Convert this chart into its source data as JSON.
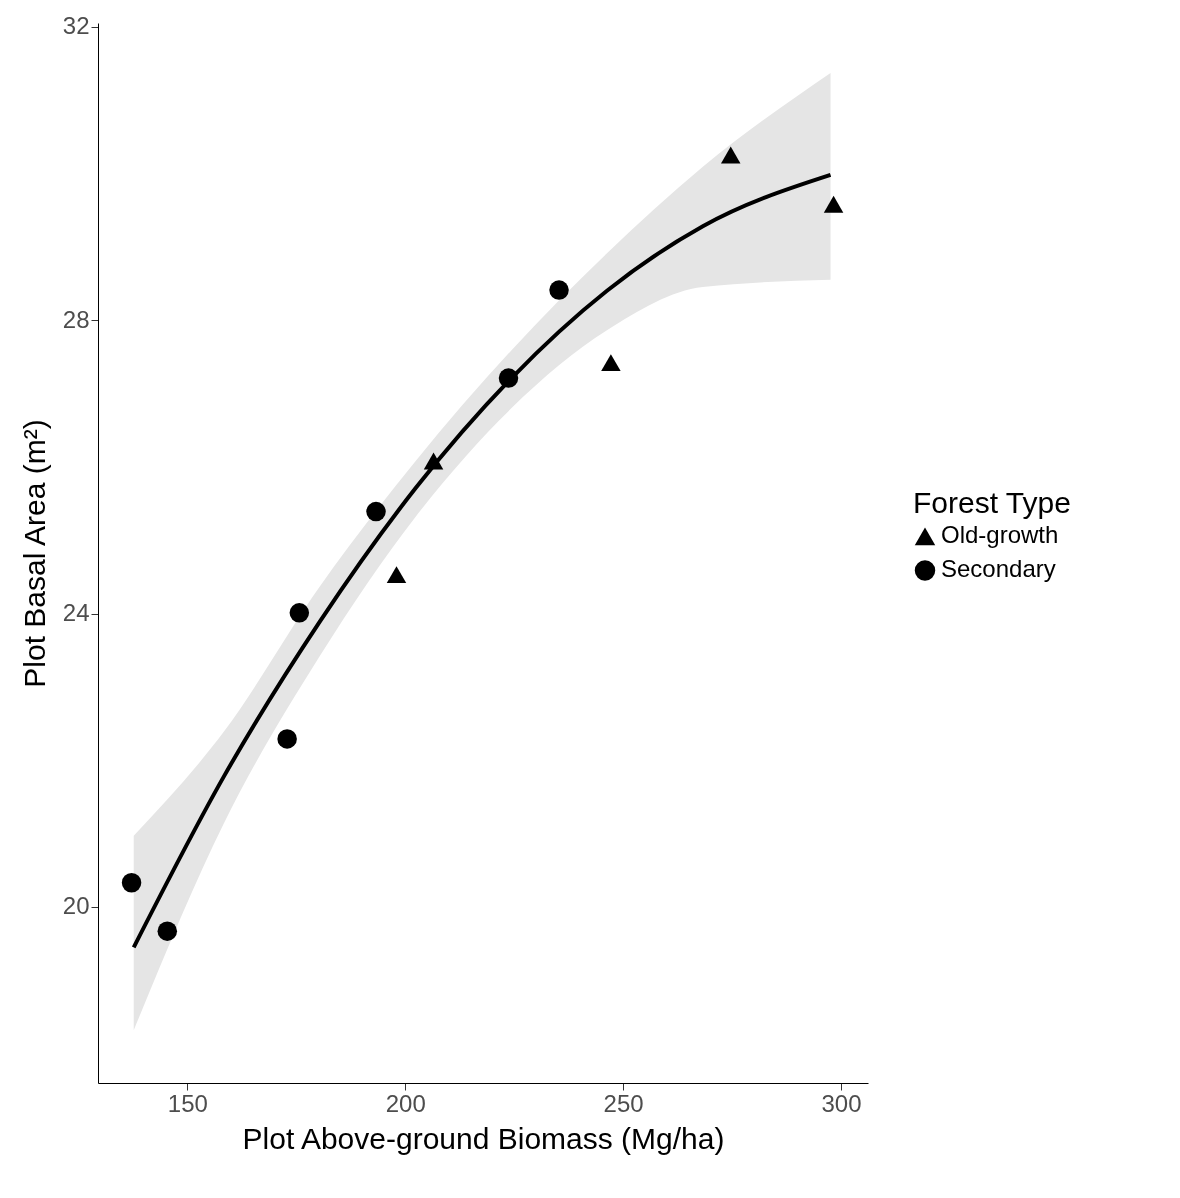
{
  "chart_data": {
    "type": "scatter",
    "xlabel": "Plot Above-ground Biomass (Mg/ha)",
    "ylabel": "Plot Basal Area (m²)",
    "legend_title": "Forest Type",
    "legend": "right",
    "grid": false,
    "xlim": [
      129.5,
      306.2
    ],
    "ylim": [
      17.6,
      32.05
    ],
    "xticks": [
      150,
      200,
      250,
      300
    ],
    "yticks": [
      20,
      24,
      28,
      32
    ],
    "series": [
      {
        "name": "Old-growth",
        "color": "#000000",
        "marker": "triangle",
        "x": [
          198.0,
          206.5,
          247.2,
          274.7,
          298.3
        ],
        "values": [
          24.53,
          26.08,
          27.42,
          30.25,
          29.58
        ]
      },
      {
        "name": "Secondary",
        "color": "#000000",
        "marker": "circle",
        "x": [
          137.2,
          145.4,
          172.9,
          175.7,
          193.3,
          223.7,
          235.3
        ],
        "values": [
          20.33,
          19.67,
          22.29,
          24.01,
          25.39,
          27.21,
          28.41
        ]
      },
      {
        "type": "line",
        "color": "#000000",
        "x": [
          137.7,
          158.4,
          180.4,
          202.4,
          224.4,
          246.3,
          268.3,
          297.6
        ],
        "values": [
          19.45,
          21.78,
          23.89,
          25.71,
          27.21,
          28.4,
          29.28,
          29.98
        ],
        "lower": [
          18.32,
          21.14,
          23.42,
          25.32,
          26.8,
          27.86,
          28.45,
          28.55
        ],
        "upper": [
          20.97,
          22.39,
          24.37,
          26.08,
          27.59,
          28.91,
          30.09,
          31.37
        ]
      }
    ]
  }
}
